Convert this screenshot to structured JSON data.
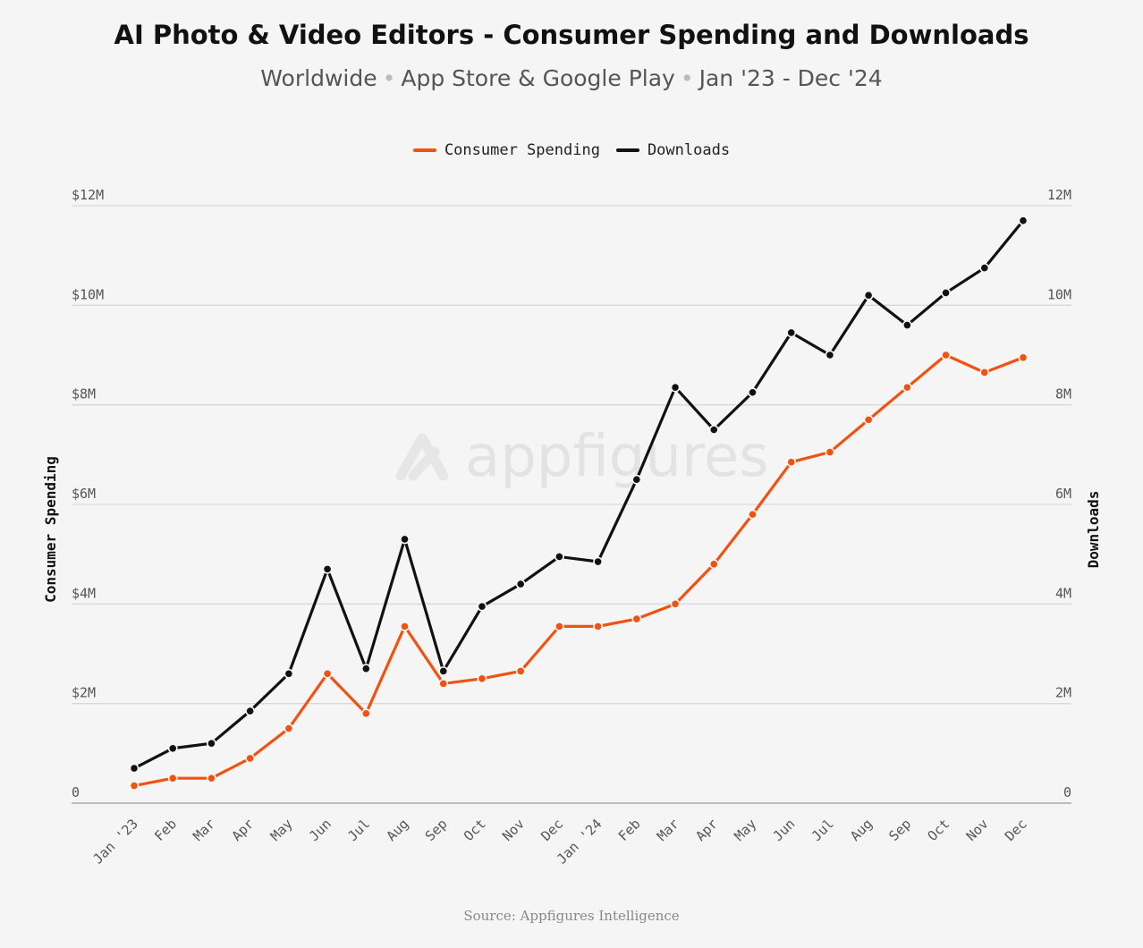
{
  "header": {
    "title": "AI Photo & Video Editors - Consumer Spending and Downloads",
    "subtitle_parts": [
      "Worldwide",
      "App Store & Google Play",
      "Jan '23 - Dec '24"
    ],
    "subtitle_sep": "•"
  },
  "watermark": {
    "text": "appfigures"
  },
  "footer": {
    "source": "Source: Appfigures Intelligence"
  },
  "colors": {
    "spending": "#f2520f",
    "downloads": "#111111",
    "grid": "#d9d9d9",
    "axis_text": "#555555"
  },
  "chart_data": {
    "type": "line",
    "title": "AI Photo & Video Editors - Consumer Spending and Downloads",
    "legend": {
      "placement": "top-center"
    },
    "grid": true,
    "categories": [
      "Jan '23",
      "Feb",
      "Mar",
      "Apr",
      "May",
      "Jun",
      "Jul",
      "Aug",
      "Sep",
      "Oct",
      "Nov",
      "Dec",
      "Jan '24",
      "Feb",
      "Mar",
      "Apr",
      "May",
      "Jun",
      "Jul",
      "Aug",
      "Sep",
      "Oct",
      "Nov",
      "Dec"
    ],
    "y_left": {
      "label": "Consumer Spending",
      "ylim": [
        0,
        12
      ],
      "ticks": [
        {
          "value": 0,
          "label": "0"
        },
        {
          "value": 2,
          "label": "$2M"
        },
        {
          "value": 4,
          "label": "$4M"
        },
        {
          "value": 6,
          "label": "$6M"
        },
        {
          "value": 8,
          "label": "$8M"
        },
        {
          "value": 10,
          "label": "$10M"
        },
        {
          "value": 12,
          "label": "$12M"
        }
      ]
    },
    "y_right": {
      "label": "Downloads",
      "ylim": [
        0,
        12
      ],
      "ticks": [
        {
          "value": 0,
          "label": "0"
        },
        {
          "value": 2,
          "label": "2M"
        },
        {
          "value": 4,
          "label": "4M"
        },
        {
          "value": 6,
          "label": "6M"
        },
        {
          "value": 8,
          "label": "8M"
        },
        {
          "value": 10,
          "label": "10M"
        },
        {
          "value": 12,
          "label": "12M"
        }
      ]
    },
    "series": [
      {
        "name": "Consumer Spending",
        "axis": "left",
        "color": "#f2520f",
        "values": [
          0.35,
          0.5,
          0.5,
          0.9,
          1.5,
          2.6,
          1.8,
          3.55,
          2.4,
          2.5,
          2.65,
          3.55,
          3.55,
          3.7,
          4.0,
          4.8,
          5.8,
          6.85,
          7.05,
          7.7,
          8.35,
          9.0,
          8.65,
          8.95
        ]
      },
      {
        "name": "Downloads",
        "axis": "right",
        "color": "#111111",
        "values": [
          0.7,
          1.1,
          1.2,
          1.85,
          2.6,
          4.7,
          2.7,
          5.3,
          2.65,
          3.95,
          4.4,
          4.95,
          4.85,
          6.5,
          8.35,
          7.5,
          8.25,
          9.45,
          9.0,
          10.2,
          9.6,
          10.25,
          10.75,
          11.7
        ]
      }
    ]
  }
}
